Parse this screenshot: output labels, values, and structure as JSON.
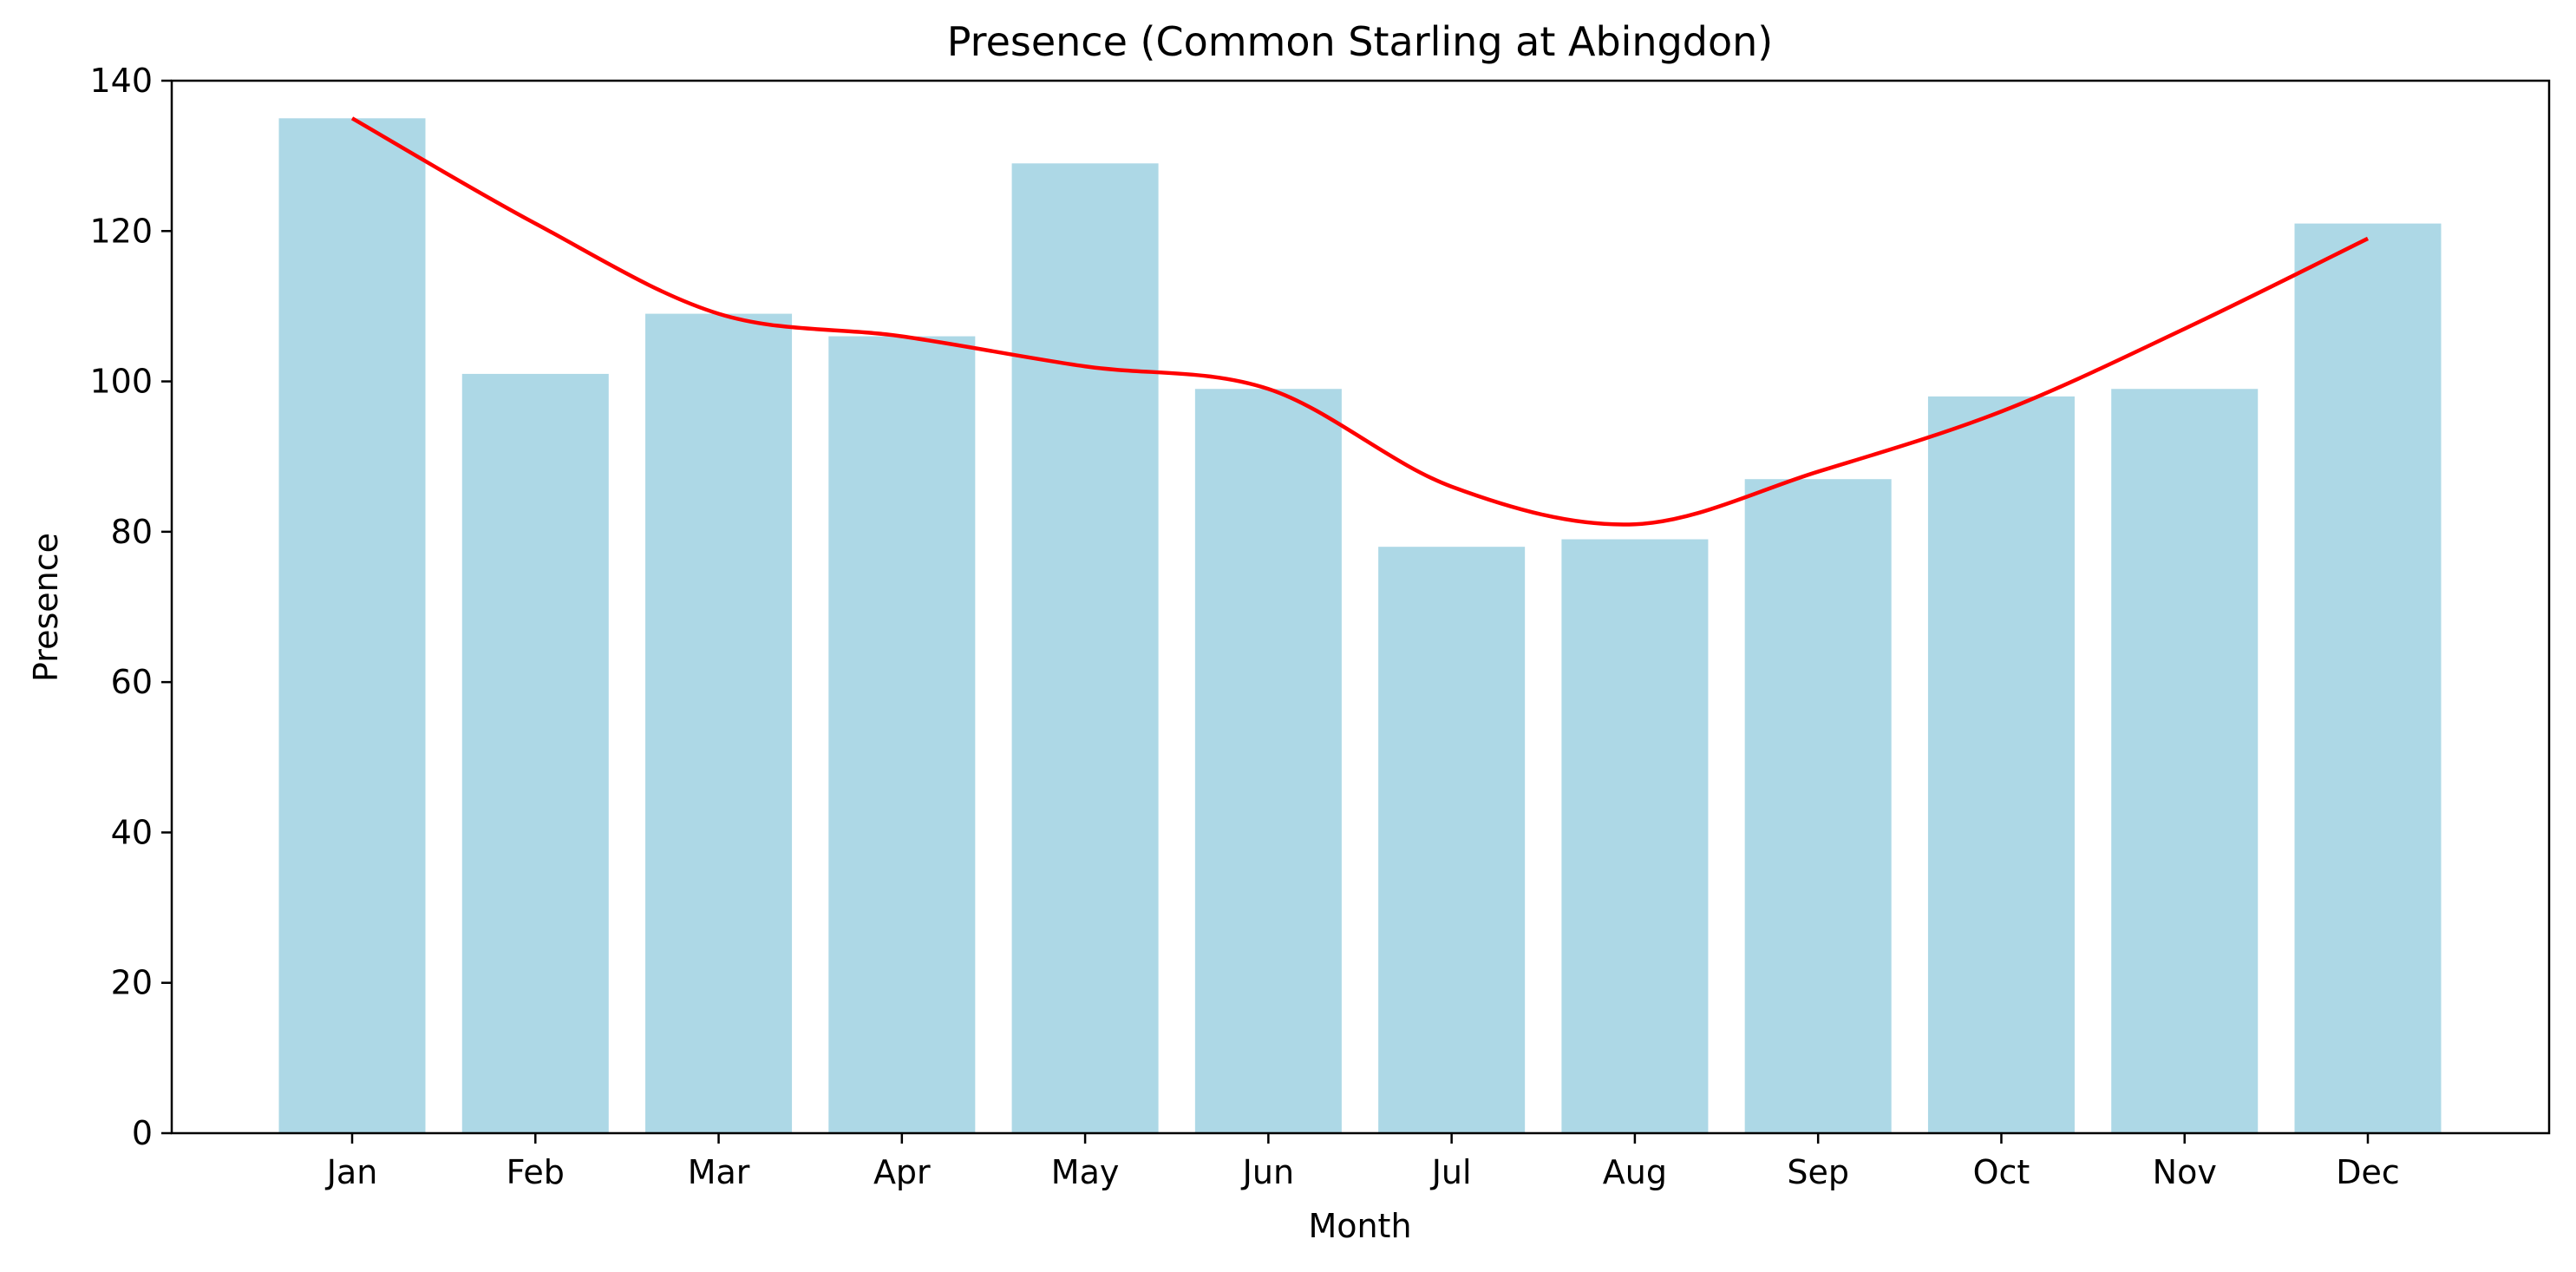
{
  "chart_data": {
    "type": "bar",
    "title": "Presence (Common Starling at Abingdon)",
    "xlabel": "Month",
    "ylabel": "Presence",
    "categories": [
      "Jan",
      "Feb",
      "Mar",
      "Apr",
      "May",
      "Jun",
      "Jul",
      "Aug",
      "Sep",
      "Oct",
      "Nov",
      "Dec"
    ],
    "series": [
      {
        "type": "bar",
        "values": [
          135,
          101,
          109,
          106,
          129,
          99,
          78,
          79,
          87,
          98,
          99,
          121
        ],
        "color": "#add8e6"
      },
      {
        "type": "line",
        "values": [
          135,
          121,
          109,
          106,
          102,
          99,
          86,
          81,
          88,
          96,
          107,
          119
        ],
        "color": "#ff0000"
      }
    ],
    "ylim": [
      0,
      140
    ],
    "yticks": [
      0,
      20,
      40,
      60,
      80,
      100,
      120,
      140
    ],
    "grid": false,
    "legend": "none"
  }
}
